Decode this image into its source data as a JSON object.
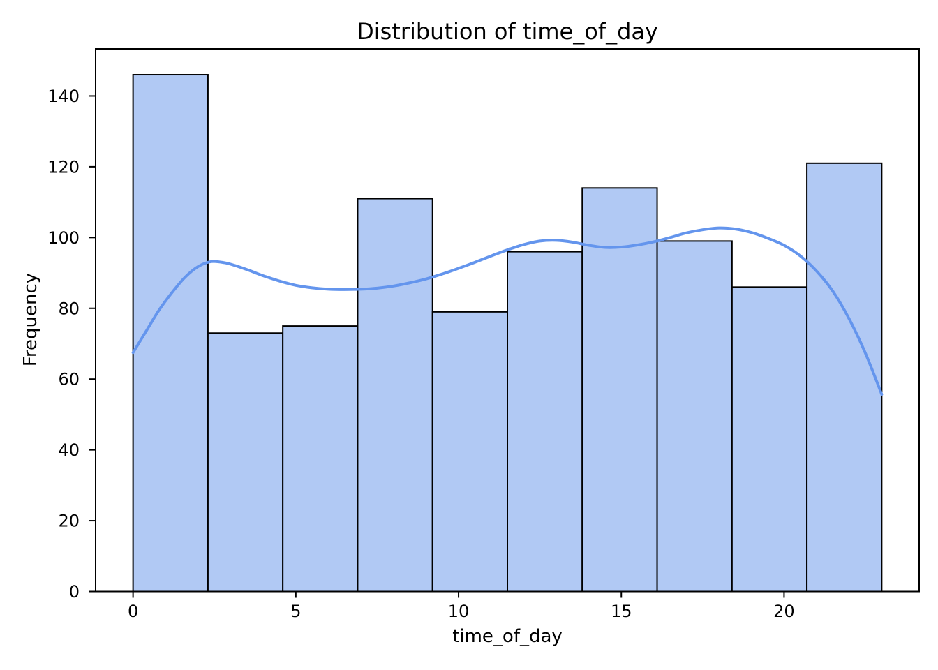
{
  "chart_data": {
    "type": "histogram",
    "title": "Distribution of time_of_day",
    "xlabel": "time_of_day",
    "ylabel": "Frequency",
    "bin_edges": [
      0,
      2.3,
      4.6,
      6.9,
      9.2,
      11.5,
      13.8,
      16.1,
      18.4,
      20.7,
      23
    ],
    "counts": [
      146,
      73,
      75,
      111,
      79,
      96,
      114,
      99,
      86,
      121
    ],
    "total_count": 1000,
    "x_ticks": [
      0,
      5,
      10,
      15,
      20
    ],
    "y_ticks": [
      0,
      20,
      40,
      60,
      80,
      100,
      120,
      140
    ],
    "xlim": [
      -1.15,
      24.15
    ],
    "ylim": [
      0,
      153.3
    ],
    "grid": false,
    "legend": null,
    "kde_curve": {
      "x": [
        0,
        0.4,
        0.8,
        1.2,
        1.6,
        2.0,
        2.4,
        2.8,
        3.2,
        3.6,
        4.0,
        4.5,
        5.0,
        5.5,
        6.0,
        6.5,
        7.0,
        7.5,
        8.0,
        8.5,
        9.0,
        9.5,
        10.0,
        10.5,
        11.0,
        11.5,
        12.0,
        12.5,
        13.0,
        13.5,
        14.0,
        14.5,
        15.0,
        15.5,
        16.0,
        16.5,
        17.0,
        17.5,
        18.0,
        18.5,
        19.0,
        19.5,
        20.0,
        20.5,
        21.0,
        21.5,
        22.0,
        22.5,
        23.0
      ],
      "y": [
        67.5,
        73.5,
        79.5,
        84.5,
        88.8,
        91.8,
        93.2,
        92.9,
        91.9,
        90.6,
        89.2,
        87.7,
        86.5,
        85.8,
        85.4,
        85.3,
        85.4,
        85.7,
        86.3,
        87.2,
        88.3,
        89.7,
        91.3,
        93.0,
        94.8,
        96.5,
        98.0,
        99.0,
        99.2,
        98.7,
        97.8,
        97.2,
        97.3,
        97.9,
        98.8,
        100.0,
        101.3,
        102.2,
        102.7,
        102.4,
        101.4,
        99.8,
        97.8,
        94.8,
        90.5,
        84.8,
        77.0,
        67.3,
        55.7
      ]
    },
    "colors": {
      "bar_fill": "#b1c9f4",
      "bar_edge": "#000000",
      "kde_line": "#6495ed",
      "spine": "#000000",
      "text": "#000000",
      "background": "#ffffff"
    }
  }
}
